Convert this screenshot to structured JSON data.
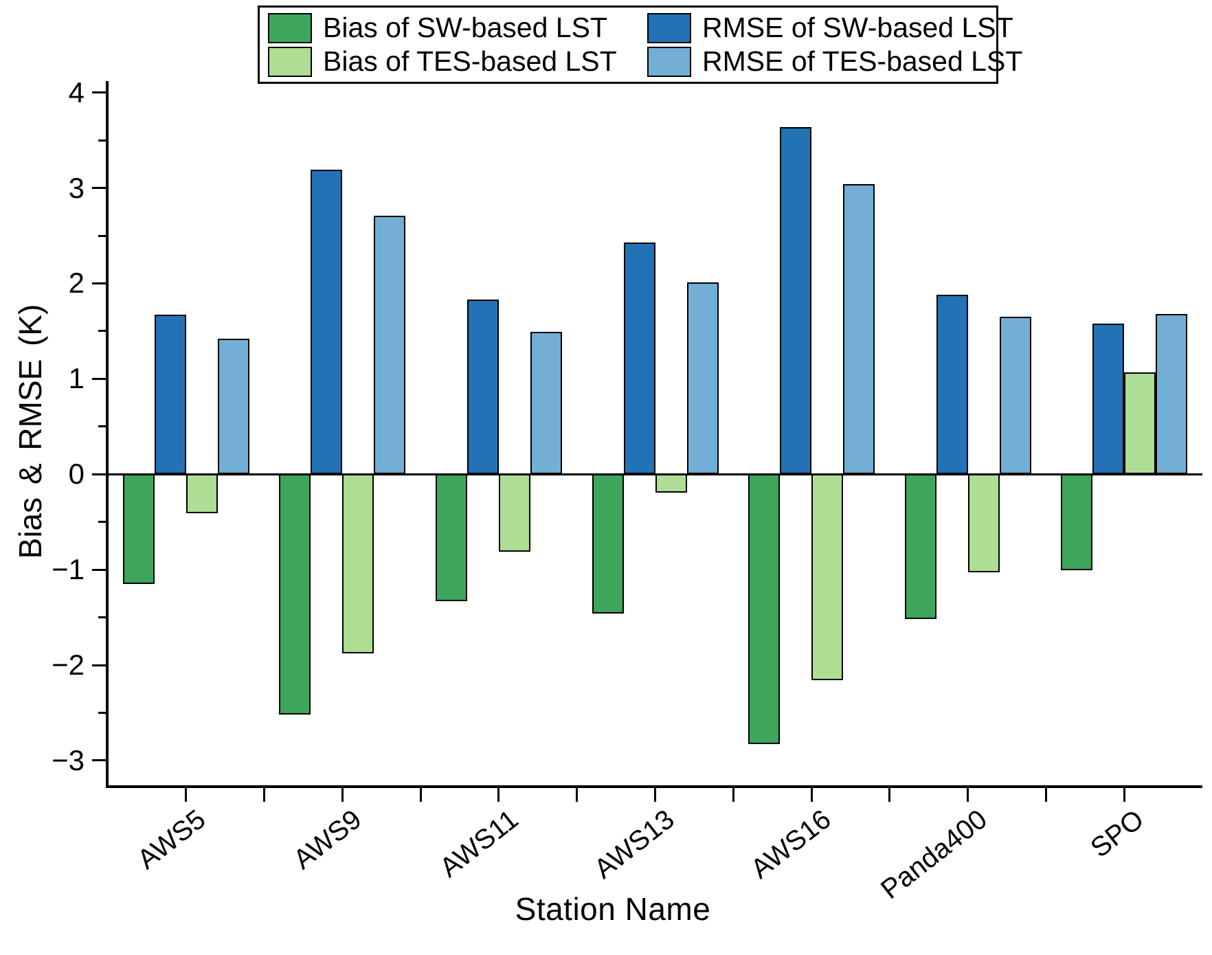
{
  "chart_data": {
    "type": "bar",
    "title": "",
    "xlabel": "Station Name",
    "ylabel": "Bias  &  RMSE (K)",
    "categories": [
      "AWS5",
      "AWS9",
      "AWS11",
      "AWS13",
      "AWS16",
      "Panda400",
      "SPO"
    ],
    "series": [
      {
        "name": "Bias of SW-based LST",
        "color": "#3da65a",
        "values": [
          -1.15,
          -2.52,
          -1.33,
          -1.46,
          -2.83,
          -1.52,
          -1.01
        ]
      },
      {
        "name": "RMSE of SW-based LST",
        "color": "#2272b5",
        "values": [
          1.67,
          3.19,
          1.83,
          2.43,
          3.64,
          1.88,
          1.58
        ]
      },
      {
        "name": "Bias of TES-based LST",
        "color": "#aedd94",
        "values": [
          -0.41,
          -1.88,
          -0.81,
          -0.19,
          -2.16,
          -1.03,
          1.07
        ]
      },
      {
        "name": "RMSE of TES-based LST",
        "color": "#73aed5",
        "values": [
          1.42,
          2.71,
          1.49,
          2.01,
          3.04,
          1.65,
          1.68
        ]
      }
    ],
    "ylim": [
      -3.26,
      4.12
    ],
    "yticks": [
      4,
      3,
      2,
      1,
      0,
      -1,
      -2,
      -3
    ],
    "grid": false,
    "legend_position": "top-center",
    "bar_outline_color": "#000000"
  },
  "legend": {
    "items": [
      {
        "label": "Bias of SW-based LST"
      },
      {
        "label": "RMSE of SW-based LST"
      },
      {
        "label": "Bias of TES-based LST"
      },
      {
        "label": "RMSE of TES-based LST"
      }
    ]
  }
}
